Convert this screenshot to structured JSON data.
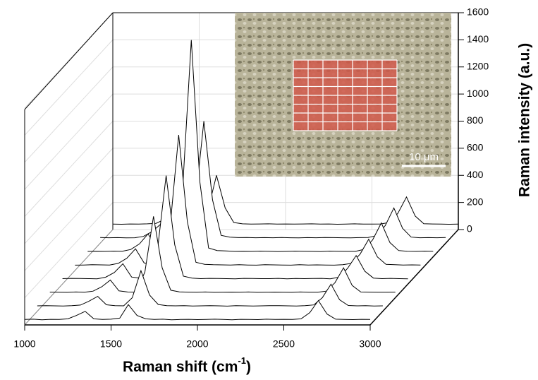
{
  "chart_data": {
    "type": "waterfall",
    "x_label": "Raman shift (cm",
    "x_label_sup": "-1",
    "x_label_end": ")",
    "z_label": "Raman intensity (a.u.)",
    "annotation": "10 μm",
    "color": "#000000",
    "xlim": [
      1000,
      3000
    ],
    "xticks": [
      1000,
      1500,
      2000,
      2500,
      3000
    ],
    "zlim": [
      0,
      1600
    ],
    "zticks": [
      0,
      200,
      400,
      600,
      800,
      1000,
      1200,
      1400,
      1600
    ],
    "grid": true,
    "x": [
      1000,
      1050,
      1100,
      1150,
      1200,
      1250,
      1300,
      1350,
      1400,
      1450,
      1500,
      1550,
      1600,
      1650,
      1700,
      1750,
      1800,
      1850,
      1900,
      1950,
      2000,
      2050,
      2100,
      2150,
      2200,
      2250,
      2300,
      2350,
      2400,
      2450,
      2500,
      2550,
      2600,
      2650,
      2700,
      2750,
      2800,
      2850,
      2900,
      2950,
      3000
    ],
    "series": [
      {
        "values": [
          40,
          42,
          38,
          41,
          40,
          45,
          70,
          100,
          45,
          40,
          42,
          50,
          150,
          70,
          45,
          40,
          42,
          38,
          40,
          41,
          39,
          40,
          42,
          40,
          38,
          41,
          40,
          39,
          42,
          40,
          41,
          40,
          45,
          90,
          180,
          80,
          42,
          40,
          39,
          41,
          40
        ]
      },
      {
        "values": [
          40,
          41,
          40,
          39,
          42,
          46,
          75,
          110,
          48,
          41,
          40,
          100,
          300,
          120,
          50,
          42,
          40,
          41,
          39,
          40,
          42,
          40,
          38,
          41,
          40,
          39,
          40,
          42,
          41,
          40,
          39,
          41,
          47,
          100,
          200,
          85,
          43,
          40,
          41,
          39,
          40
        ]
      },
      {
        "values": [
          41,
          40,
          39,
          42,
          40,
          48,
          80,
          130,
          50,
          42,
          41,
          190,
          600,
          220,
          55,
          43,
          41,
          40,
          42,
          39,
          40,
          41,
          40,
          42,
          39,
          40,
          41,
          40,
          39,
          42,
          40,
          40,
          48,
          110,
          220,
          90,
          42,
          41,
          40,
          40,
          41
        ]
      },
      {
        "values": [
          40,
          42,
          41,
          40,
          39,
          50,
          85,
          150,
          52,
          43,
          42,
          250,
          800,
          290,
          58,
          44,
          40,
          42,
          41,
          40,
          39,
          42,
          41,
          40,
          40,
          42,
          39,
          41,
          40,
          41,
          42,
          39,
          50,
          115,
          210,
          95,
          44,
          40,
          42,
          40,
          39
        ]
      },
      {
        "values": [
          39,
          40,
          42,
          41,
          40,
          52,
          90,
          160,
          55,
          44,
          43,
          320,
          1000,
          360,
          60,
          45,
          42,
          41,
          40,
          42,
          40,
          39,
          42,
          41,
          40,
          39,
          42,
          40,
          41,
          40,
          39,
          42,
          52,
          120,
          230,
          100,
          45,
          42,
          40,
          41,
          40
        ]
      },
      {
        "values": [
          40,
          41,
          40,
          42,
          41,
          54,
          95,
          170,
          58,
          45,
          44,
          500,
          1600,
          550,
          65,
          46,
          43,
          40,
          41,
          40,
          42,
          41,
          39,
          40,
          42,
          41,
          40,
          39,
          42,
          41,
          40,
          40,
          55,
          125,
          250,
          105,
          46,
          41,
          40,
          42,
          41
        ]
      },
      {
        "values": [
          42,
          40,
          41,
          39,
          40,
          50,
          85,
          140,
          52,
          44,
          42,
          290,
          900,
          320,
          58,
          44,
          41,
          42,
          40,
          41,
          40,
          42,
          40,
          39,
          41,
          40,
          42,
          41,
          40,
          39,
          41,
          42,
          55,
          130,
          260,
          110,
          45,
          40,
          41,
          40,
          42
        ]
      },
      {
        "values": [
          40,
          39,
          41,
          40,
          42,
          46,
          75,
          110,
          48,
          42,
          41,
          140,
          400,
          160,
          52,
          42,
          40,
          41,
          42,
          40,
          41,
          40,
          41,
          42,
          40,
          41,
          39,
          40,
          42,
          40,
          40,
          41,
          52,
          120,
          240,
          100,
          43,
          41,
          40,
          39,
          40
        ]
      }
    ]
  }
}
